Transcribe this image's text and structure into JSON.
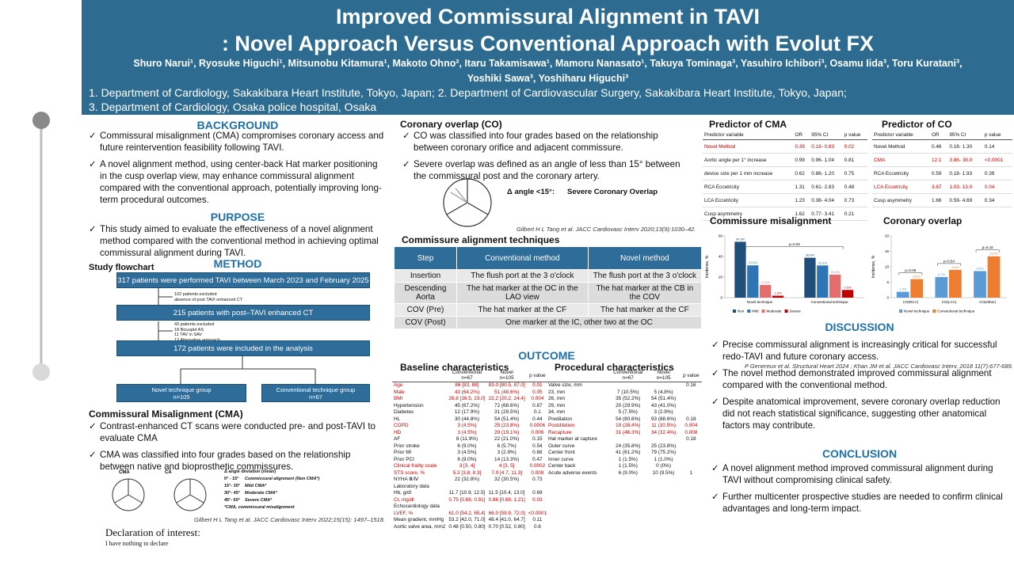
{
  "header": {
    "title_line1": "Improved Commissural Alignment in TAVI",
    "title_line2": ": Novel Approach Versus Conventional Approach with Evolut FX",
    "authors_line1": "Shuro Narui¹, Ryosuke Higuchi¹, Mitsunobu Kitamura¹, Makoto Ohno², Itaru Takamisawa¹, Mamoru Nanasato¹, Takuya Tominaga³, Yasuhiro Ichibori³, Osamu Iida³, Toru Kuratani³,",
    "authors_line2": "Yoshiki Sawa³, Yoshiharu Higuchi³",
    "affiliations_line1": "1. Department of Cardiology, Sakakibara Heart Institute, Tokyo, Japan; 2. Department of Cardiovascular Surgery, Sakakibara Heart Institute, Tokyo, Japan;",
    "affiliations_line2": "3. Department of Cardiology, Osaka police hospital, Osaka"
  },
  "background": {
    "heading": "BACKGROUND",
    "bullets": [
      "Commissural misalignment (CMA) compromises coronary access and future reintervention feasibility following TAVI.",
      "A novel alignment method, using center-back Hat marker positioning in the cusp overlap view, may enhance commissural alignment compared with the conventional approach, potentially improving long-term procedural outcomes."
    ]
  },
  "purpose": {
    "heading": "PURPOSE",
    "bullets": [
      "This study aimed to evaluate the effectiveness of a novel alignment method compared with the conventional method in achieving optimal commissural alignment during TAVI."
    ]
  },
  "method": {
    "heading": "METHOD",
    "flowchart_label": "Study flowchart",
    "flow": {
      "step1": "317 patients were performed TAVI between March 2023 and February 2025",
      "exclusion1": [
        "102 patients excluded",
        "absence of post TAVI enhanced CT"
      ],
      "step2": "215 patients with post–TAVI enhanced CT",
      "exclusion2": [
        "43 patients excluded",
        "18 Bicuspid AS",
        "11 TAV in SAV",
        "13 Alternative approach"
      ],
      "step3": "172 patients were included in the analysis",
      "group1": "Novel technique group\nn=105",
      "group2": "Conventional technique group\nn=67"
    },
    "cma_heading": "Commissural Misalignment (CMA)",
    "cma_bullets": [
      "Contrast-enhanced CT scans were conducted pre- and post-TAVI to evaluate CMA",
      "CMA was classified into four grades based on the relationship between native and bioprosthetic commissures."
    ],
    "cma_figure": {
      "labels": [
        "CMA",
        "CA"
      ],
      "legend_title": "Δ angle deviation (mean)",
      "legend": [
        [
          "0° - 15°",
          "Commissural alignment (Non CMA*)"
        ],
        [
          "15°- 30°",
          "Mild CMA*"
        ],
        [
          "30°- 45°",
          "Moderate CMA*"
        ],
        [
          "45°- 60°",
          "Severe CMA*"
        ]
      ],
      "footnote": "*CMA, commissural misalignment",
      "citation": "Gilbert H L Tang et al. JACC Cardiovasc Interv 2022;15(15): 1497–1518."
    }
  },
  "declaration": {
    "heading": "Declaration of interest:",
    "text": "I have nothing to declare"
  },
  "coronary_overlap": {
    "heading": "Coronary overlap (CO)",
    "bullets": [
      "CO was classified into four grades based on the relationship between coronary orifice and adjacent commissure.",
      "Severe overlap was defined as an angle of less than 15° between the commissural post and the coronary artery."
    ],
    "figure_label": "Δ angle <15°:",
    "figure_text": "Severe Coronary Overlap",
    "citation": "Gilbert H L Tang et al. JACC Cardiovasc Interv 2020;13(9):1030–42."
  },
  "techniques": {
    "title": "Commissure alignment techniques",
    "columns": [
      "Step",
      "Conventional method",
      "Novel method"
    ],
    "rows": [
      [
        "Insertion",
        "The flush port at the 3 o'clock",
        "The flush port at the 3 o'clock"
      ],
      [
        "Descending Aorta",
        "The hat marker at the OC in the LAO view",
        "The hat marker at the CB in the COV"
      ],
      [
        "COV (Pre)",
        "The hat marker at the CF",
        "The hat marker at the CF"
      ],
      [
        "COV (Post)",
        "One marker at the IC, other two at the OC"
      ]
    ]
  },
  "outcome": {
    "heading": "OUTCOME"
  },
  "baseline": {
    "title": "Baseline characteristics",
    "columns": [
      "Conventional\nn=67",
      "Novel\nn=105",
      "p value"
    ],
    "rows": [
      [
        "Age",
        "86 [83, 88]",
        "83.0 [80.5, 87.0]",
        "0.01"
      ],
      [
        "Male",
        "43 (64.2%)",
        "51 (48.6%)",
        "0.05"
      ],
      [
        "BMI",
        "26.8 [16.5, 23.0]",
        "22.2 [20.2, 24.4]",
        "0.004"
      ],
      [
        "Hypertension",
        "45 (67.2%)",
        "72 (68.6%)",
        "0.87"
      ],
      [
        "Diabetes",
        "12 (17.9%)",
        "31 (29.5%)",
        "0.1"
      ],
      [
        "HL",
        "30 (44.8%)",
        "54 (51.4%)",
        "0.44"
      ],
      [
        "COPD",
        "3 (4.5%)",
        "25 (23.8%)",
        "0.0006"
      ],
      [
        "HD",
        "3 (4.5%)",
        "20 (19.1%)",
        "0.006"
      ],
      [
        "AF",
        "8 (11.9%)",
        "22 (21.0%)",
        "0.15"
      ],
      [
        "Prior stroke",
        "6 (9.0%)",
        "6 (5.7%)",
        "0.54"
      ],
      [
        "Prior MI",
        "3 (4.5%)",
        "3 (2.9%)",
        "0.68"
      ],
      [
        "Prior PCI",
        "6 (9.0%)",
        "14 (13.3%)",
        "0.47"
      ],
      [
        "Clinical frailty scale",
        "3 [3, 4]",
        "4 [3, 5]",
        "0.0002"
      ],
      [
        "STS score, %",
        "5.3 [3.8, 8.3]",
        "7.0 [4.7, 11.3]",
        "0.008"
      ],
      [
        "NYHA Ⅲ/Ⅳ",
        "22 (32.8%)",
        "32 (30.5%)",
        "0.73"
      ],
      [
        "Laboratory data"
      ],
      [
        "Hb, g/dl",
        "11.7 [10.9, 12.5]",
        "11.5 [10.4, 13.0]",
        "0.69"
      ],
      [
        "Cr, mg/dl",
        "0.75 [0.68, 0.91]",
        "0.86 [0.69, 1.21]",
        "0.03"
      ],
      [
        "Echocardiology data"
      ],
      [
        "LVEF, %",
        "61.0 [54.2, 65.4]",
        "66.0 [59.9, 72.0]",
        "<0.0001"
      ],
      [
        "Mean gradient, mmHg",
        "53.2 [42.0, 71.0]",
        "48.4 [41.0, 64.7]",
        "0.11"
      ],
      [
        "Aortic valve area, mm2",
        "0.48 [0.50, 0.80]",
        "0.70 [0.52, 0.80]",
        "0.8"
      ]
    ],
    "highlight_rows": [
      0,
      1,
      2,
      6,
      7,
      12,
      13,
      17,
      19
    ]
  },
  "procedural": {
    "title": "Procedural characteristics",
    "columns": [
      "Conventional\nn=67",
      "Novel\nn=105",
      "p value"
    ],
    "rows": [
      [
        "Valve size, mm",
        null,
        null,
        "0.16"
      ],
      [
        "23, mm",
        "7 (10.5%)",
        "5 (4.8%)"
      ],
      [
        "26, mm",
        "35 (52.2%)",
        "54 (51.4%)"
      ],
      [
        "29, mm",
        "20 (29.9%)",
        "43 (41.0%)"
      ],
      [
        "34, mm",
        "5 (7.5%)",
        "3 (2.9%)"
      ],
      [
        "Predilation",
        "54 (80.6%)",
        "93 (88.6%)",
        "0.18"
      ],
      [
        "Postdilation",
        "19 (28.4%)",
        "11 (10.5%)",
        "0.004"
      ],
      [
        "Recapture",
        "31 (46.3%)",
        "34 (32.4%)",
        "0.008"
      ],
      [
        "Hat marker at capture",
        null,
        null,
        "0.18"
      ],
      [
        "Outer curve",
        "24 (35.8%)",
        "25 (23.8%)"
      ],
      [
        "Center front",
        "41 (61.2%)",
        "79 (75.2%)"
      ],
      [
        "Inner curve",
        "1 (1.5%)",
        "1 (1.0%)"
      ],
      [
        "Center back",
        "1 (1.5%)",
        "0 (0%)"
      ],
      [
        "Acute adverse events",
        "6 (9.0%)",
        "10 (9.5%)",
        "1"
      ]
    ],
    "highlight_rows": [
      6,
      7
    ]
  },
  "predictor_cma": {
    "title": "Predictor of CMA",
    "columns": [
      "Predictor variable",
      "OR",
      "95% CI",
      "p value"
    ],
    "rows": [
      [
        "Novel Method",
        "0.39",
        "0.18- 0.83",
        "0.02"
      ],
      [
        "Aortic angle per 1° increase",
        "0.99",
        "0.96- 1.04",
        "0.81"
      ],
      [
        "device size per 1 mm increase",
        "0.62",
        "0.86- 1.20",
        "0.75"
      ],
      [
        "RCA Eccetricity",
        "1.31",
        "0.61- 2.83",
        "0.48"
      ],
      [
        "LCA Eccetricity",
        "1.23",
        "0.38- 4.04",
        "0.73"
      ],
      [
        "Cusp asymmetry",
        "1.62",
        "0.77- 3.41",
        "0.21"
      ]
    ],
    "highlight_rows": [
      0
    ]
  },
  "predictor_co": {
    "title": "Predictor of CO",
    "columns": [
      "Predictor variable",
      "OR",
      "95% CI",
      "p value"
    ],
    "rows": [
      [
        "Novel Method",
        "0.46",
        "0.16- 1.30",
        "0.14"
      ],
      [
        "CMA",
        "12.1",
        "3.86- 38.0",
        "<0.0001"
      ],
      [
        "RCA Eccetricity",
        "0.59",
        "0.18- 1.93",
        "0.39"
      ],
      [
        "LCA Eccetricity",
        "3.67",
        "1.03- 13.0",
        "0.04"
      ],
      [
        "Cusp asymmetry",
        "1.66",
        "0.59- 4.69",
        "0.34"
      ]
    ],
    "highlight_rows": [
      1,
      3
    ]
  },
  "chart_data": [
    {
      "type": "bar",
      "title": "Commissure misalignment",
      "y_label": "Incidence, %",
      "categories": [
        "Novel technique",
        "Conventional technique"
      ],
      "series": [
        {
          "name": "Non",
          "color": "#1f4e79",
          "values": [
            54.3,
            38.8
          ],
          "value_labels": [
            "54.3%",
            "38.8%"
          ]
        },
        {
          "name": "Mild",
          "color": "#2e75b6",
          "values": [
            31.4,
            31.3
          ],
          "value_labels": [
            "31.4%",
            "31.3%"
          ]
        },
        {
          "name": "Moderate",
          "color": "#e46c6c",
          "values": [
            12.4,
            22.4
          ],
          "value_labels": [
            "12.4%",
            "22.4%"
          ]
        },
        {
          "name": "Severe",
          "color": "#c00000",
          "values": [
            1.9,
            7.5
          ],
          "value_labels": [
            "1.9%",
            "7.5%"
          ]
        }
      ],
      "ylim": [
        0,
        60
      ],
      "yticks": [
        0,
        20,
        40,
        60
      ],
      "annotations": [
        "p=0.02"
      ],
      "annotation_span": "all"
    },
    {
      "type": "bar",
      "title": "Coronary overlap",
      "y_label": "Incidence, %",
      "categories": [
        "CO(RCA)",
        "CO(LCA)",
        "CO(either)"
      ],
      "series": [
        {
          "name": "Novel technique",
          "color": "#5b9bd5",
          "values": [
            1.9,
            6.7,
            8.6
          ],
          "value_labels": [
            "1.9%",
            "6.7%",
            "8.6%"
          ]
        },
        {
          "name": "Conventional technique",
          "color": "#ed7d31",
          "values": [
            6.0,
            9.0,
            13.4
          ],
          "value_labels": [
            "6.0%",
            "9.0%",
            "13.4%"
          ]
        }
      ],
      "ylim": [
        0,
        20
      ],
      "yticks": [
        0,
        5,
        10,
        15,
        20
      ],
      "annotations": [
        "p=0.08",
        "p=0.54",
        "p=0.16"
      ],
      "annotation_span": "each"
    }
  ],
  "discussion": {
    "heading": "DISCUSSION",
    "bullets": [
      "Precise commissural alignment is increasingly critical for successful redo-TAVI and future coronary access.",
      "The novel method demonstrated improved commissural alignment compared with the conventional method.",
      "Despite anatomical improvement, severe coronary overlap reduction did not reach statistical significance, suggesting other anatomical factors may contribute."
    ],
    "citation": "P Genereux et al. Structural Heart 2024 ; Khan JM et al. JACC Cardiovasc Interv. 2018 11(7):677-689."
  },
  "conclusion": {
    "heading": "CONCLUSION",
    "bullets": [
      "A novel alignment method improved commissural alignment during TAVI without compromising clinical safety.",
      "Further multicenter prospective studies are needed to confirm clinical advantages and long-term impact."
    ]
  }
}
